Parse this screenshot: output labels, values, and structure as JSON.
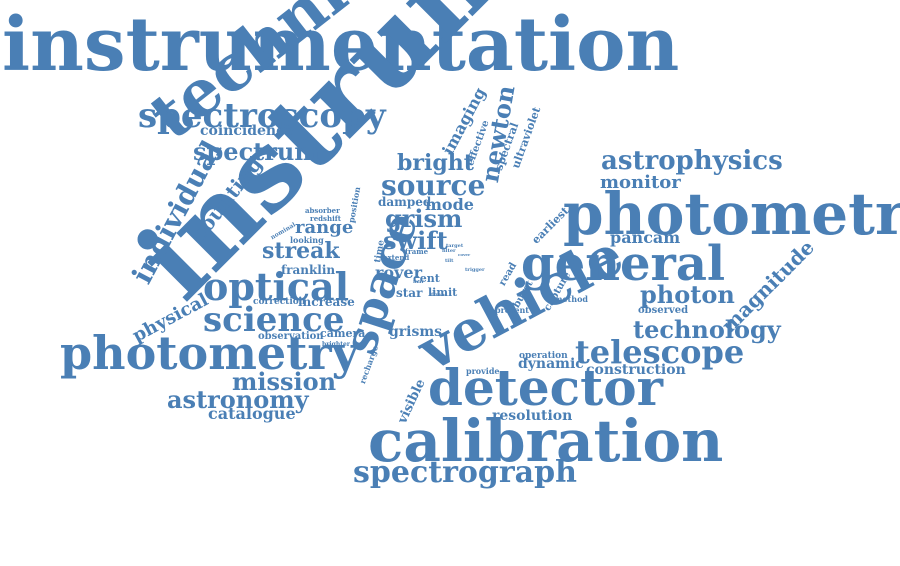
{
  "color": "#4a7fb5",
  "words": [
    {
      "id": "instrumentation",
      "text": "instrumentation"
    },
    {
      "id": "instrument",
      "text": "instrument"
    },
    {
      "id": "technique",
      "text": "technique"
    },
    {
      "id": "photometric",
      "text": "photometric"
    },
    {
      "id": "calibration",
      "text": "calibration"
    },
    {
      "id": "vehicle",
      "text": "vehicle"
    },
    {
      "id": "detector",
      "text": "detector"
    },
    {
      "id": "general",
      "text": "general"
    },
    {
      "id": "photometry",
      "text": "photometry"
    },
    {
      "id": "space",
      "text": "space"
    },
    {
      "id": "spectroscopy",
      "text": "spectroscopy"
    },
    {
      "id": "spectrograph",
      "text": "spectrograph"
    },
    {
      "id": "optical",
      "text": "optical"
    },
    {
      "id": "science",
      "text": "science"
    },
    {
      "id": "telescope",
      "text": "telescope"
    },
    {
      "id": "astrophysics",
      "text": "astrophysics"
    },
    {
      "id": "individual",
      "text": "individual"
    },
    {
      "id": "source",
      "text": "source"
    },
    {
      "id": "technology",
      "text": "technology"
    },
    {
      "id": "spectrum",
      "text": "spectrum"
    },
    {
      "id": "photon",
      "text": "photon"
    },
    {
      "id": "astronomy",
      "text": "astronomy"
    },
    {
      "id": "mission",
      "text": "mission"
    },
    {
      "id": "grism",
      "text": "grism"
    },
    {
      "id": "swift",
      "text": "swift"
    },
    {
      "id": "bright",
      "text": "bright"
    },
    {
      "id": "newton",
      "text": "newton"
    },
    {
      "id": "magnitude",
      "text": "magnitude"
    },
    {
      "id": "streak",
      "text": "streak"
    },
    {
      "id": "counting",
      "text": "counting"
    },
    {
      "id": "monitor",
      "text": "monitor"
    },
    {
      "id": "imaging",
      "text": "imaging"
    },
    {
      "id": "range",
      "text": "range"
    },
    {
      "id": "physical",
      "text": "physical"
    },
    {
      "id": "pancam",
      "text": "pancam"
    },
    {
      "id": "catalogue",
      "text": "catalogue"
    },
    {
      "id": "resolution",
      "text": "resolution"
    },
    {
      "id": "construction",
      "text": "construction"
    },
    {
      "id": "mode",
      "text": "mode"
    },
    {
      "id": "rover",
      "text": "rover"
    },
    {
      "id": "coincidence",
      "text": "coincidence"
    },
    {
      "id": "grisms",
      "text": "grisms"
    },
    {
      "id": "dynamic",
      "text": "dynamic"
    },
    {
      "id": "visible",
      "text": "visible"
    },
    {
      "id": "franklin",
      "text": "franklin"
    },
    {
      "id": "increase",
      "text": "increase"
    },
    {
      "id": "camera",
      "text": "camera"
    },
    {
      "id": "observation",
      "text": "observation"
    },
    {
      "id": "correction",
      "text": "correction"
    },
    {
      "id": "damped",
      "text": "damped"
    },
    {
      "id": "star",
      "text": "star"
    },
    {
      "id": "cent",
      "text": "cent"
    },
    {
      "id": "limit",
      "text": "limit"
    },
    {
      "id": "earliest",
      "text": "earliest"
    },
    {
      "id": "ultraviolet",
      "text": "ultraviolet"
    },
    {
      "id": "spectral",
      "text": "spectral"
    },
    {
      "id": "effective",
      "text": "effective"
    },
    {
      "id": "capture",
      "text": "capture"
    },
    {
      "id": "burst",
      "text": "burst"
    },
    {
      "id": "read",
      "text": "read"
    },
    {
      "id": "observed",
      "text": "observed"
    },
    {
      "id": "operation",
      "text": "operation"
    },
    {
      "id": "provide",
      "text": "provide"
    },
    {
      "id": "present",
      "text": "present"
    },
    {
      "id": "method",
      "text": "method"
    },
    {
      "id": "recharge",
      "text": "recharge"
    },
    {
      "id": "position",
      "text": "position"
    },
    {
      "id": "time",
      "text": "time"
    },
    {
      "id": "redshift",
      "text": "redshift"
    },
    {
      "id": "absorber",
      "text": "absorber"
    },
    {
      "id": "looking",
      "text": "looking"
    },
    {
      "id": "nominal",
      "text": "nominal"
    },
    {
      "id": "brighter",
      "text": "brighter"
    },
    {
      "id": "extend",
      "text": "extend"
    },
    {
      "id": "frame",
      "text": "frame"
    },
    {
      "id": "filter",
      "text": "filter"
    },
    {
      "id": "target",
      "text": "target"
    },
    {
      "id": "trigger",
      "text": "trigger"
    },
    {
      "id": "frmac",
      "text": "frmac"
    },
    {
      "id": "tilt",
      "text": "tilt"
    },
    {
      "id": "cover",
      "text": "cover"
    },
    {
      "id": "mar",
      "text": "mar"
    }
  ]
}
